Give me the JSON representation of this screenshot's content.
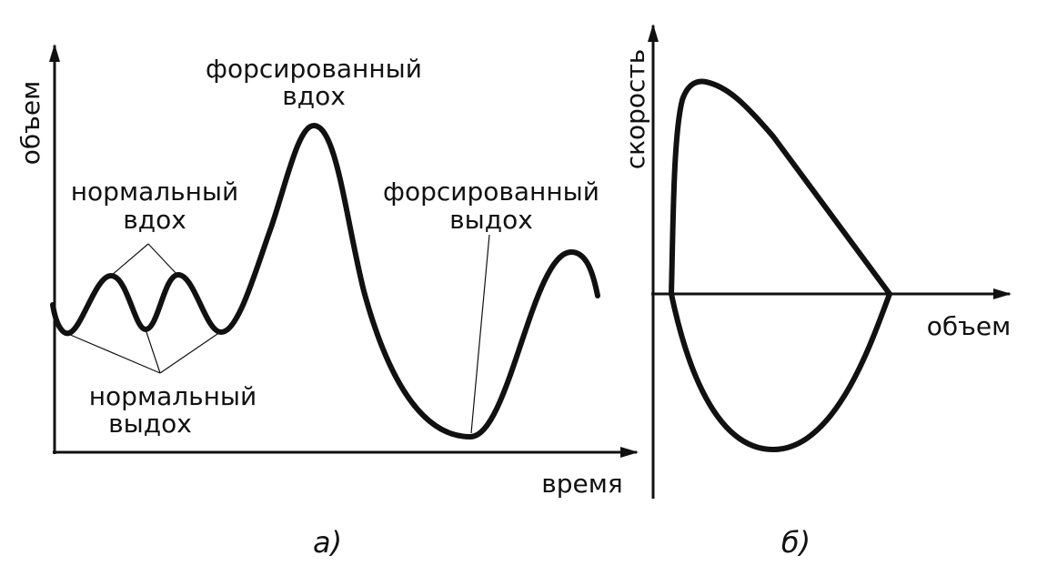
{
  "panel_a": {
    "y_axis_label": "объем",
    "x_axis_label": "время",
    "forced_inhale": [
      "форсированный",
      "вдох"
    ],
    "normal_inhale": [
      "нормальный",
      "вдох"
    ],
    "forced_exhale": [
      "форсированный",
      "выдох"
    ],
    "normal_exhale": [
      "нормальный",
      "выдох"
    ],
    "caption": "а)"
  },
  "panel_b": {
    "y_axis_label": "скорость",
    "x_axis_label": "объем",
    "caption": "б)"
  }
}
